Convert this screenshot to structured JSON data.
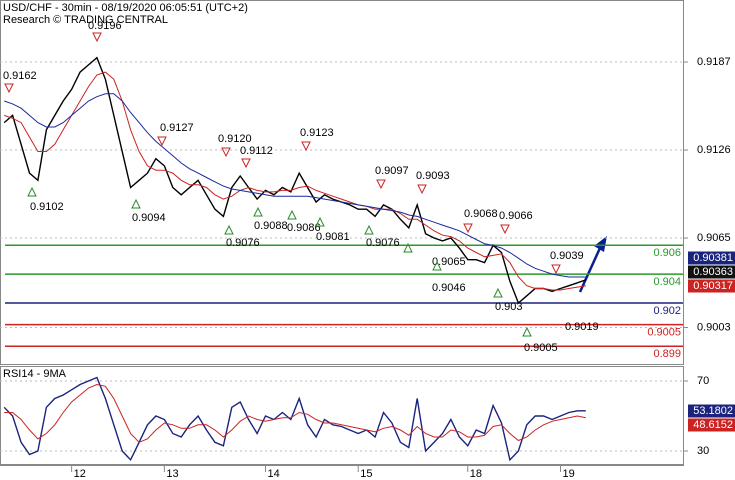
{
  "chart_data": [
    {
      "type": "line",
      "title": "USD/CHF - 30min - 08/19/2020 06:05:51 (UTC+2)",
      "subtitle": "Research © TRADING CENTRAL",
      "categories": [
        null,
        null,
        null,
        null,
        null,
        null,
        null,
        null,
        "12",
        null,
        null,
        null,
        null,
        null,
        null,
        null,
        null,
        null,
        null,
        "13",
        null,
        null,
        null,
        null,
        null,
        null,
        null,
        null,
        null,
        null,
        null,
        "14",
        null,
        null,
        null,
        null,
        null,
        null,
        null,
        null,
        null,
        null,
        "15",
        null,
        null,
        null,
        null,
        null,
        null,
        null,
        null,
        null,
        null,
        null,
        null,
        "18",
        null,
        null,
        null,
        null,
        null,
        null,
        null,
        null,
        null,
        null,
        "19",
        null,
        null,
        null
      ],
      "series": [
        {
          "color": "#000000",
          "values": [
            0.9145,
            0.915,
            0.913,
            0.911,
            0.9105,
            0.914,
            0.915,
            0.916,
            0.9168,
            0.918,
            0.9185,
            0.919,
            0.9175,
            0.915,
            0.9125,
            0.91,
            0.9105,
            0.911,
            0.912,
            0.9115,
            0.91,
            0.9095,
            0.91,
            0.9105,
            0.9095,
            0.9085,
            0.908,
            0.91,
            0.9108,
            0.91,
            0.9092,
            0.9098,
            0.9095,
            0.91,
            0.9097,
            0.911,
            0.91,
            0.909,
            0.9095,
            0.9092,
            0.909,
            0.9088,
            0.9085,
            0.9085,
            0.908,
            0.9088,
            0.9085,
            0.9078,
            0.9072,
            0.9088,
            0.9068,
            0.9065,
            0.9063,
            0.9065,
            0.9058,
            0.905,
            0.905,
            0.9048,
            0.906,
            0.9055,
            0.9035,
            0.902,
            0.9025,
            0.903,
            0.903,
            0.9028,
            0.903,
            0.9032,
            0.9034,
            0.9036
          ]
        },
        {
          "color": "#cc2222",
          "values": [
            0.915,
            0.9148,
            0.9145,
            0.9135,
            0.9125,
            0.9125,
            0.913,
            0.914,
            0.915,
            0.916,
            0.917,
            0.9178,
            0.918,
            0.9175,
            0.916,
            0.914,
            0.9125,
            0.9115,
            0.9112,
            0.9112,
            0.911,
            0.9105,
            0.9102,
            0.9102,
            0.91,
            0.9095,
            0.9092,
            0.9094,
            0.9098,
            0.91,
            0.9098,
            0.9097,
            0.9097,
            0.9098,
            0.9098,
            0.91,
            0.9101,
            0.9098,
            0.9096,
            0.9094,
            0.9092,
            0.909,
            0.9088,
            0.9087,
            0.9085,
            0.9085,
            0.9085,
            0.9082,
            0.9078,
            0.9078,
            0.9074,
            0.907,
            0.9067,
            0.9066,
            0.9063,
            0.9058,
            0.9055,
            0.9052,
            0.9053,
            0.9054,
            0.9048,
            0.9038,
            0.9032,
            0.903,
            0.903,
            0.9029,
            0.9029,
            0.903,
            0.9031,
            0.9032
          ]
        },
        {
          "color": "#1a2a9a",
          "values": [
            0.916,
            0.9158,
            0.9155,
            0.915,
            0.9145,
            0.9142,
            0.9142,
            0.9145,
            0.915,
            0.9155,
            0.916,
            0.9163,
            0.9165,
            0.9165,
            0.916,
            0.9152,
            0.9145,
            0.9138,
            0.9132,
            0.9127,
            0.9122,
            0.9117,
            0.9113,
            0.911,
            0.9107,
            0.9104,
            0.9101,
            0.9099,
            0.9098,
            0.9097,
            0.9096,
            0.9095,
            0.9094,
            0.9094,
            0.9094,
            0.9094,
            0.9094,
            0.9093,
            0.9092,
            0.9091,
            0.909,
            0.9089,
            0.9088,
            0.9087,
            0.9086,
            0.9085,
            0.9084,
            0.9083,
            0.9081,
            0.908,
            0.9078,
            0.9076,
            0.9074,
            0.9072,
            0.907,
            0.9067,
            0.9064,
            0.9061,
            0.906,
            0.9058,
            0.9055,
            0.9051,
            0.9047,
            0.9044,
            0.9042,
            0.904,
            0.9039,
            0.9038,
            0.9038,
            0.9038
          ]
        }
      ],
      "ylim": [
        0.8977,
        0.923
      ],
      "yticks": [
        0.9187,
        0.9126,
        0.9065,
        0.9003
      ],
      "grid": true,
      "levels": [
        {
          "value": 0.906,
          "color": "#2a9a2a"
        },
        {
          "value": 0.904,
          "color": "#2a9a2a"
        },
        {
          "value": 0.902,
          "color": "#1a237e"
        },
        {
          "value": 0.9005,
          "color": "#cc2222"
        },
        {
          "value": 0.899,
          "color": "#cc2222"
        }
      ],
      "annotations": [
        "0.9162",
        "0.9196",
        "0.9102",
        "0.9127",
        "0.9094",
        "0.9120",
        "0.9112",
        "0.9123",
        "0.9076",
        "0.9088",
        "0.9086",
        "0.9081",
        "0.9097",
        "0.9093",
        "0.9076",
        "0.9065",
        "0.9046",
        "0.9068",
        "0.9066",
        "0.9039",
        "0.903",
        "0.9019",
        "0.9005"
      ],
      "price_tags": [
        {
          "value": 0.90381,
          "color": "#1a237e"
        },
        {
          "value": 0.90363,
          "color": "#111111"
        },
        {
          "value": 0.90317,
          "color": "#cc2222"
        }
      ]
    },
    {
      "type": "line",
      "title": "RSI14 - 9MA",
      "series": [
        {
          "color": "#1a237e",
          "values": [
            55,
            50,
            35,
            28,
            30,
            55,
            60,
            62,
            65,
            68,
            70,
            72,
            60,
            45,
            30,
            25,
            35,
            45,
            50,
            48,
            40,
            38,
            45,
            50,
            42,
            35,
            33,
            55,
            58,
            48,
            40,
            50,
            48,
            52,
            48,
            60,
            45,
            38,
            48,
            45,
            44,
            42,
            40,
            42,
            38,
            52,
            46,
            35,
            32,
            60,
            30,
            35,
            40,
            48,
            38,
            33,
            42,
            40,
            56,
            46,
            25,
            30,
            45,
            50,
            50,
            48,
            50,
            52,
            53,
            53
          ]
        },
        {
          "color": "#cc2222",
          "values": [
            52,
            52,
            48,
            42,
            37,
            40,
            45,
            52,
            58,
            62,
            66,
            68,
            67,
            60,
            50,
            40,
            35,
            37,
            42,
            46,
            45,
            43,
            43,
            45,
            45,
            42,
            38,
            42,
            47,
            50,
            48,
            47,
            48,
            49,
            49,
            52,
            51,
            48,
            46,
            46,
            45,
            44,
            43,
            42,
            41,
            43,
            44,
            42,
            39,
            44,
            40,
            38,
            38,
            42,
            41,
            38,
            38,
            39,
            44,
            45,
            40,
            36,
            38,
            42,
            45,
            47,
            48,
            49,
            50,
            49
          ]
        }
      ],
      "ylim": [
        22,
        78
      ],
      "yticks": [
        70,
        30
      ],
      "grid": true,
      "price_tags": [
        {
          "value": 53.1802,
          "color": "#1a237e"
        },
        {
          "value": 48.6152,
          "color": "#cc2222"
        }
      ]
    }
  ]
}
